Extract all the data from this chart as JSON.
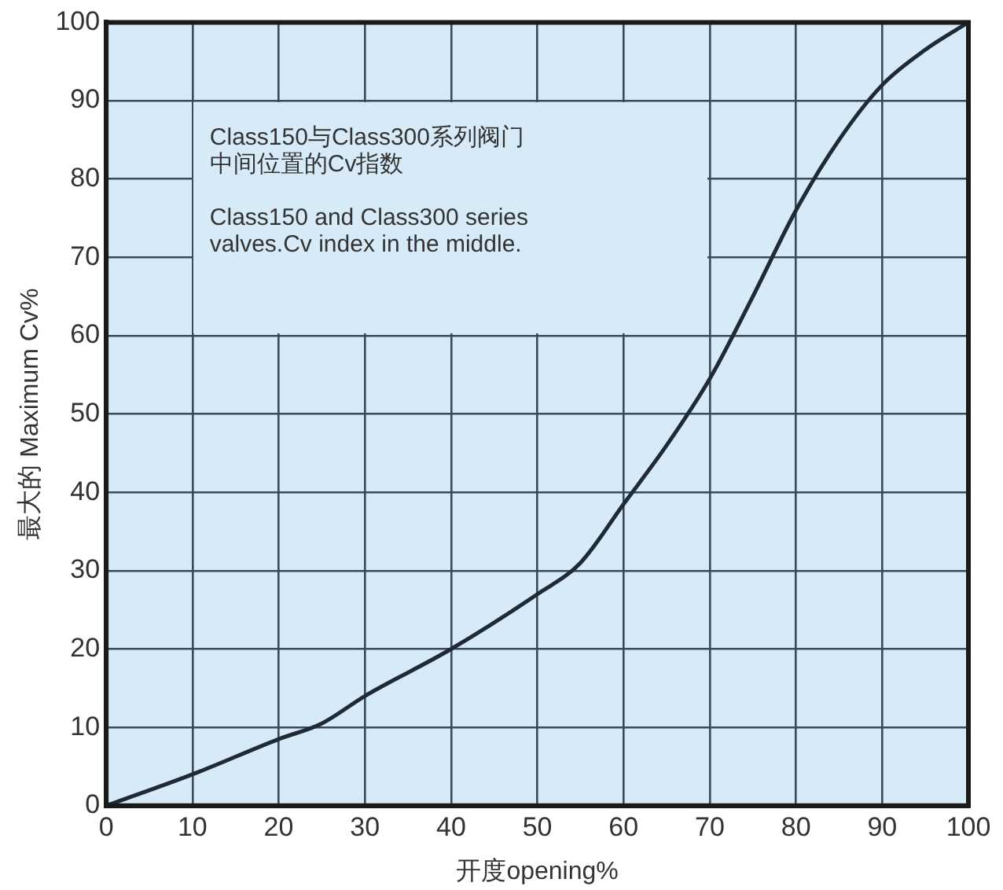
{
  "chart_data": {
    "type": "line",
    "xlabel": "开度opening%",
    "ylabel": "最大的 Maximum Cv%",
    "x": [
      0,
      10,
      20,
      25,
      30,
      40,
      50,
      55,
      60,
      65,
      70,
      75,
      80,
      85,
      90,
      95,
      100
    ],
    "series": [
      {
        "color": "#1f2a36",
        "values": [
          0,
          4,
          8.5,
          10.5,
          14,
          20,
          27,
          31,
          38.5,
          46,
          54.5,
          65,
          76,
          85,
          92,
          96.5,
          100
        ]
      }
    ],
    "xlim": [
      0,
      100
    ],
    "xticks": [
      0,
      10,
      20,
      30,
      40,
      50,
      60,
      70,
      80,
      90,
      100
    ],
    "ylim": [
      0,
      100
    ],
    "yticks": [
      0,
      10,
      20,
      30,
      40,
      50,
      60,
      70,
      80,
      90,
      100
    ],
    "grid": true,
    "legend": false,
    "marker": "none",
    "line_style": "solid",
    "annotations": [
      "Class150与Class300系列阀门",
      "中间位置的Cv指数",
      "Class150 and Class300 series\nvalves.Cv index in the middle."
    ]
  }
}
